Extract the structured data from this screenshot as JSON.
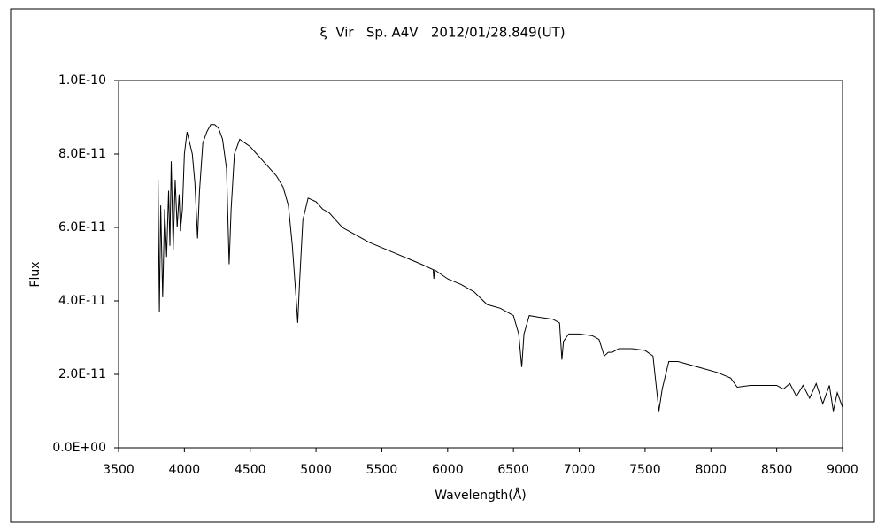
{
  "chart_data": {
    "type": "line",
    "title": "ξ  Vir   Sp. A4V   2012/01/28.849(UT)",
    "x_label": "Wavelength(Å)",
    "y_label": "Flux",
    "color": "#000000",
    "xlim": [
      3500,
      9000
    ],
    "xticks": [
      3500,
      4000,
      4500,
      5000,
      5500,
      6000,
      6500,
      7000,
      7500,
      8000,
      8500,
      9000
    ],
    "ylim": [
      0,
      1e-10
    ],
    "yticks": [
      {
        "value": 0,
        "label": "0.0E+00"
      },
      {
        "value": 2e-11,
        "label": "2.0E-11"
      },
      {
        "value": 4e-11,
        "label": "4.0E-11"
      },
      {
        "value": 6e-11,
        "label": "6.0E-11"
      },
      {
        "value": 8e-11,
        "label": "8.0E-11"
      },
      {
        "value": 1e-10,
        "label": "1.0E-10"
      }
    ],
    "x": [
      3800,
      3810,
      3820,
      3835,
      3850,
      3865,
      3880,
      3890,
      3900,
      3915,
      3930,
      3945,
      3960,
      3970,
      3985,
      4000,
      4020,
      4040,
      4060,
      4080,
      4100,
      4115,
      4140,
      4170,
      4200,
      4230,
      4260,
      4290,
      4320,
      4340,
      4355,
      4380,
      4420,
      4460,
      4500,
      4550,
      4600,
      4650,
      4700,
      4750,
      4790,
      4820,
      4850,
      4861,
      4875,
      4900,
      4940,
      5000,
      5050,
      5100,
      5150,
      5200,
      5250,
      5300,
      5400,
      5500,
      5600,
      5700,
      5800,
      5890,
      5895,
      5900,
      6000,
      6100,
      6200,
      6300,
      6400,
      6500,
      6540,
      6563,
      6580,
      6620,
      6700,
      6800,
      6850,
      6868,
      6880,
      6920,
      7000,
      7100,
      7150,
      7190,
      7220,
      7250,
      7300,
      7400,
      7500,
      7560,
      7590,
      7605,
      7630,
      7680,
      7750,
      7850,
      7950,
      8050,
      8150,
      8200,
      8300,
      8400,
      8500,
      8550,
      8600,
      8650,
      8700,
      8750,
      8800,
      8850,
      8900,
      8930,
      8960,
      9000
    ],
    "values": [
      7.3e-11,
      3.7e-11,
      6.6e-11,
      4.1e-11,
      6.5e-11,
      5.2e-11,
      7e-11,
      5.5e-11,
      7.8e-11,
      5.4e-11,
      7.3e-11,
      6e-11,
      6.9e-11,
      5.9e-11,
      6.5e-11,
      8e-11,
      8.6e-11,
      8.3e-11,
      8e-11,
      7.2e-11,
      5.7e-11,
      7e-11,
      8.3e-11,
      8.6e-11,
      8.8e-11,
      8.8e-11,
      8.7e-11,
      8.4e-11,
      7.6e-11,
      5e-11,
      6.5e-11,
      8e-11,
      8.4e-11,
      8.3e-11,
      8.2e-11,
      8e-11,
      7.8e-11,
      7.6e-11,
      7.4e-11,
      7.1e-11,
      6.6e-11,
      5.5e-11,
      4e-11,
      3.4e-11,
      4.5e-11,
      6.2e-11,
      6.8e-11,
      6.7e-11,
      6.5e-11,
      6.4e-11,
      6.2e-11,
      6e-11,
      5.9e-11,
      5.8e-11,
      5.6e-11,
      5.45e-11,
      5.3e-11,
      5.15e-11,
      5e-11,
      4.85e-11,
      4.6e-11,
      4.85e-11,
      4.6e-11,
      4.45e-11,
      4.25e-11,
      3.9e-11,
      3.8e-11,
      3.6e-11,
      3.1e-11,
      2.2e-11,
      3.1e-11,
      3.6e-11,
      3.55e-11,
      3.5e-11,
      3.4e-11,
      2.4e-11,
      2.9e-11,
      3.1e-11,
      3.1e-11,
      3.05e-11,
      2.95e-11,
      2.5e-11,
      2.6e-11,
      2.6e-11,
      2.7e-11,
      2.7e-11,
      2.65e-11,
      2.5e-11,
      1.5e-11,
      1e-11,
      1.6e-11,
      2.35e-11,
      2.35e-11,
      2.25e-11,
      2.15e-11,
      2.05e-11,
      1.9e-11,
      1.65e-11,
      1.7e-11,
      1.7e-11,
      1.7e-11,
      1.6e-11,
      1.75e-11,
      1.4e-11,
      1.7e-11,
      1.35e-11,
      1.75e-11,
      1.2e-11,
      1.7e-11,
      1e-11,
      1.5e-11,
      1.1e-11
    ]
  }
}
